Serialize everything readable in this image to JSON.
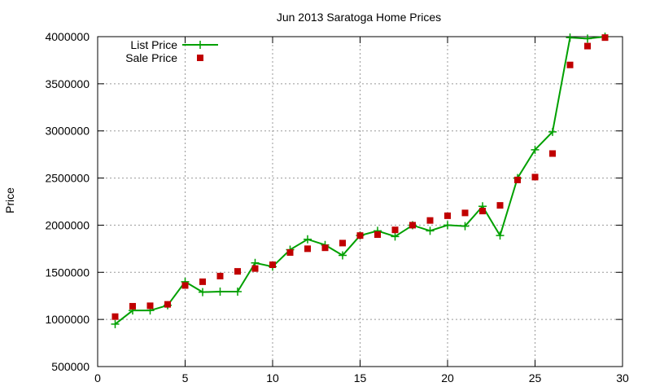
{
  "chart_data": {
    "type": "line",
    "title": "Jun 2013 Saratoga Home Prices",
    "xlabel": "",
    "ylabel": "Price",
    "xlim": [
      0,
      30
    ],
    "ylim": [
      500000,
      4000000
    ],
    "xticks": [
      0,
      5,
      10,
      15,
      20,
      25,
      30
    ],
    "yticks": [
      500000,
      1000000,
      1500000,
      2000000,
      2500000,
      3000000,
      3500000,
      4000000
    ],
    "grid": true,
    "legend_position": "top-left",
    "series": [
      {
        "name": "List Price",
        "style": "line-with-plus-markers",
        "color": "#00a000",
        "x": [
          1,
          2,
          3,
          4,
          5,
          6,
          7,
          8,
          9,
          10,
          11,
          12,
          13,
          14,
          15,
          16,
          17,
          18,
          19,
          20,
          21,
          22,
          23,
          24,
          25,
          26,
          27,
          28,
          29
        ],
        "y": [
          950000,
          1095000,
          1095000,
          1150000,
          1400000,
          1290000,
          1295000,
          1295000,
          1600000,
          1560000,
          1740000,
          1850000,
          1790000,
          1680000,
          1890000,
          1940000,
          1880000,
          1999000,
          1940000,
          2000000,
          1990000,
          2200000,
          1890000,
          2500000,
          2800000,
          2990000,
          3990000,
          3980000,
          4000000
        ]
      },
      {
        "name": "Sale Price",
        "style": "square-markers",
        "color": "#c00000",
        "x": [
          1,
          2,
          3,
          4,
          5,
          6,
          7,
          8,
          9,
          10,
          11,
          12,
          13,
          14,
          15,
          16,
          17,
          18,
          19,
          20,
          21,
          22,
          23,
          24,
          25,
          26,
          27,
          28,
          29
        ],
        "y": [
          1030000,
          1140000,
          1145000,
          1160000,
          1360000,
          1400000,
          1460000,
          1510000,
          1540000,
          1580000,
          1710000,
          1750000,
          1760000,
          1810000,
          1890000,
          1900000,
          1950000,
          2000000,
          2050000,
          2100000,
          2130000,
          2150000,
          2210000,
          2480000,
          2510000,
          2760000,
          3700000,
          3900000,
          3990000
        ]
      }
    ]
  }
}
